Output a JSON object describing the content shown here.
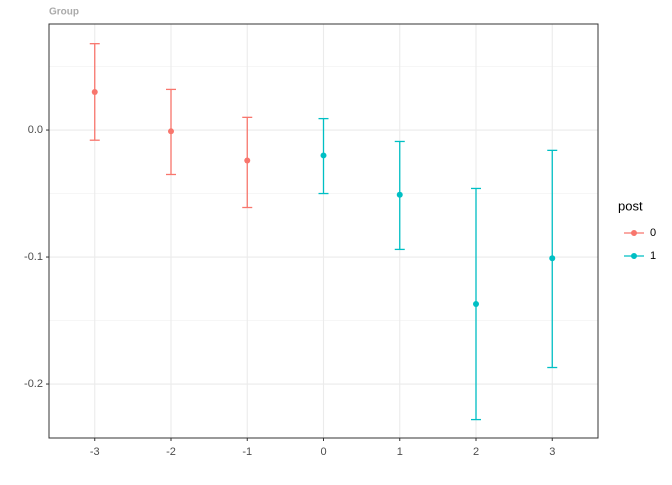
{
  "chart_data": {
    "type": "errorbar",
    "title": "Group",
    "legend_title": "post",
    "legend_position": "right",
    "xlim": [
      -3.6,
      3.6
    ],
    "xticks": [
      -3,
      -2,
      -1,
      0,
      1,
      2,
      3
    ],
    "ylim": [
      -0.2425,
      0.0835
    ],
    "yticks": [
      {
        "value": 0,
        "label": "0.0"
      },
      -0.1,
      -0.2
    ],
    "y_minor_gridlines": [
      0.05,
      -0.05,
      -0.15
    ],
    "grid": true,
    "series": [
      {
        "name": "0",
        "color": "#F8766D",
        "x": [
          -3,
          -2,
          -1
        ],
        "values": [
          0.03,
          -0.001,
          -0.024
        ],
        "lower": [
          -0.008,
          -0.035,
          -0.061
        ],
        "upper": [
          0.068,
          0.032,
          0.01
        ]
      },
      {
        "name": "1",
        "color": "#00BFC4",
        "x": [
          0,
          1,
          2,
          3
        ],
        "values": [
          -0.02,
          -0.051,
          -0.137,
          -0.101
        ],
        "lower": [
          -0.05,
          -0.094,
          -0.228,
          -0.187
        ],
        "upper": [
          0.009,
          -0.009,
          -0.046,
          -0.016
        ]
      }
    ]
  }
}
